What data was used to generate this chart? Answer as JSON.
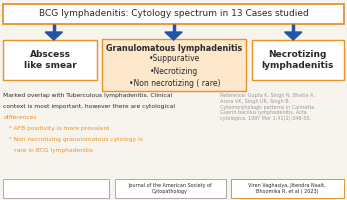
{
  "title": "BCG lymphadenitis: Cytology spectrum in 13 Cases studied",
  "title_color": "#2a2a2a",
  "bg_color": "#f7f4ee",
  "box_border_color": "#E8922A",
  "arrow_color": "#2255aa",
  "left_box_text": "Abscess\nlike smear",
  "center_box_title": "Granulomatous lymphadenitis",
  "center_box_bullets": [
    "•Suppurative",
    "•Necrotizing",
    "•Non necrotizing ( rare)"
  ],
  "right_box_text": "Necrotizing\nlymphadenitis",
  "overlap_line1": "Marked overlap with Tuberculous lymphadenitis. Clinical",
  "overlap_line2": "context is most important, however there are cytological",
  "overlap_line3": "differences",
  "bullet1": "   * AFB positivity is more prevalent",
  "bullet2": "   * Non necrotizing granulomatous cytology is",
  "bullet2b": "      rare in BCG lymphadenitis",
  "ref_text": "Reference: Gupta K, Singh N, Bhatia A,\nArora VK, Singh UR, Singh B.\nCytomorphologic patterns in Calmette\nGuerin bacillus lymphadenitis. Acta\ncytologica. 1997 Mar 1;41(2):348-50.",
  "footer_center_text": "Journal of the American Society of\nCytopathology",
  "footer_right_text": "Viren Vaghasiya, Jitendra Naait,\nBhoomika R, et al ( 2023)",
  "orange_color": "#E8922A",
  "dark_color": "#2a2a2a",
  "gray_color": "#999999",
  "center_box_fill": "#fde8cc"
}
